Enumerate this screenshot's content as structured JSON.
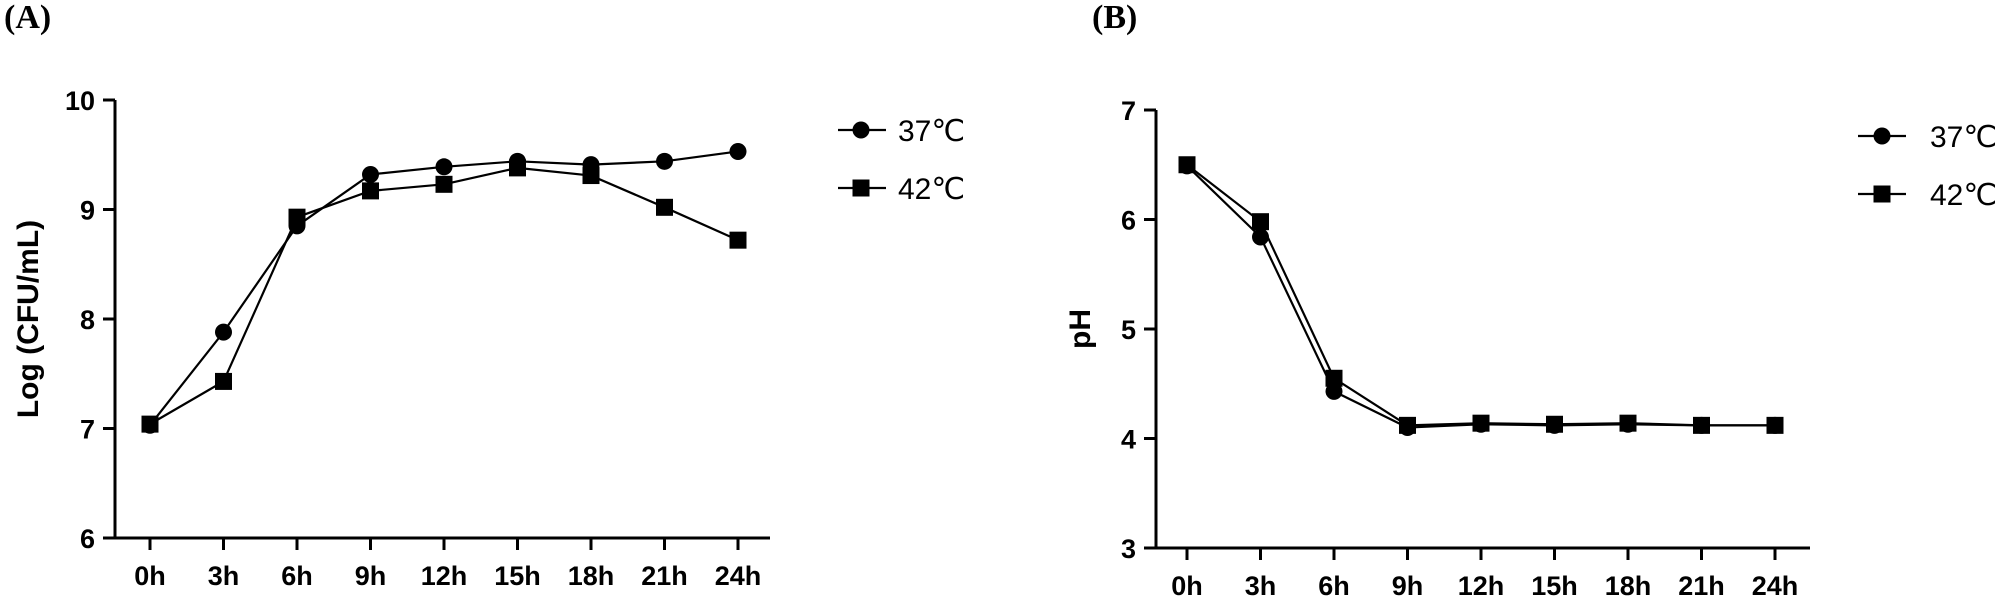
{
  "chart_data": [
    {
      "type": "line",
      "panel_label": "(A)",
      "title": "",
      "xlabel": "",
      "ylabel": "Log (CFU/mL)",
      "categories": [
        "0h",
        "3h",
        "6h",
        "9h",
        "12h",
        "15h",
        "18h",
        "21h",
        "24h"
      ],
      "ylim": [
        6,
        10
      ],
      "yticks": [
        "6",
        "7",
        "8",
        "9",
        "10"
      ],
      "legend_position": "top-right",
      "series": [
        {
          "name": "37℃",
          "marker": "circle",
          "values": [
            7.03,
            7.88,
            8.85,
            9.32,
            9.39,
            9.44,
            9.41,
            9.44,
            9.53
          ]
        },
        {
          "name": "42℃",
          "marker": "square",
          "values": [
            7.04,
            7.43,
            8.93,
            9.17,
            9.23,
            9.38,
            9.31,
            9.02,
            8.72
          ]
        }
      ]
    },
    {
      "type": "line",
      "panel_label": "(B)",
      "title": "",
      "xlabel": "",
      "ylabel": "pH",
      "categories": [
        "0h",
        "3h",
        "6h",
        "9h",
        "12h",
        "15h",
        "18h",
        "21h",
        "24h"
      ],
      "ylim": [
        3,
        7
      ],
      "yticks": [
        "3",
        "4",
        "5",
        "6",
        "7"
      ],
      "legend_position": "top-right",
      "series": [
        {
          "name": "37℃",
          "marker": "circle",
          "values": [
            6.49,
            5.84,
            4.43,
            4.1,
            4.13,
            4.12,
            4.13,
            4.12,
            4.12
          ]
        },
        {
          "name": "42℃",
          "marker": "square",
          "values": [
            6.5,
            5.98,
            4.55,
            4.12,
            4.14,
            4.13,
            4.14,
            4.12,
            4.12
          ]
        }
      ]
    }
  ]
}
